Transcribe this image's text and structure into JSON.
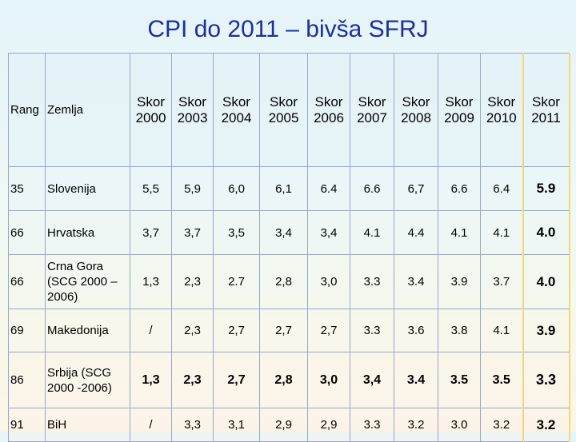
{
  "title": "CPI do 2011 – bivša SFRJ",
  "headers": {
    "rank": "Rang",
    "country": "Zemlja",
    "years": [
      "Skor 2000",
      "Skor 2003",
      "Skor 2004",
      "Skor 2005",
      "Skor 2006",
      "Skor 2007",
      "Skor 2008",
      "Skor 2009",
      "Skor 2010",
      "Skor 2011"
    ]
  },
  "rows": [
    {
      "rank": "35",
      "country": "Slovenija",
      "values": [
        "5,5",
        "5,9",
        "6,0",
        "6,1",
        "6.4",
        "6.6",
        "6,7",
        "6.6",
        "6.4",
        "5.9"
      ]
    },
    {
      "rank": "66",
      "country": "Hrvatska",
      "values": [
        "3,7",
        "3,7",
        "3,5",
        "3,4",
        "3,4",
        "4.1",
        "4.4",
        "4.1",
        "4.1",
        "4.0"
      ]
    },
    {
      "rank": "66",
      "country": "Crna Gora (SCG 2000 – 2006)",
      "values": [
        "1,3",
        "2,3",
        "2.7",
        "2,8",
        "3,0",
        "3.3",
        "3.4",
        "3.9",
        "3.7",
        "4.0"
      ]
    },
    {
      "rank": "69",
      "country": "Makedonija",
      "values": [
        "/",
        "2,3",
        "2,7",
        "2,7",
        "2,7",
        "3.3",
        "3.6",
        "3.8",
        "4.1",
        "3.9"
      ]
    },
    {
      "rank": "86",
      "country": "Srbija (SCG 2000 -2006)",
      "values": [
        "1,3",
        "2,3",
        "2,7",
        "2,8",
        "3,0",
        "3,4",
        "3.4",
        "3.5",
        "3.5",
        "3.3"
      ]
    },
    {
      "rank": "91",
      "country": "BiH",
      "values": [
        "/",
        "3,3",
        "3,1",
        "2,9",
        "2,9",
        "3.3",
        "3.2",
        "3.0",
        "3.2",
        "3.2"
      ]
    }
  ]
}
